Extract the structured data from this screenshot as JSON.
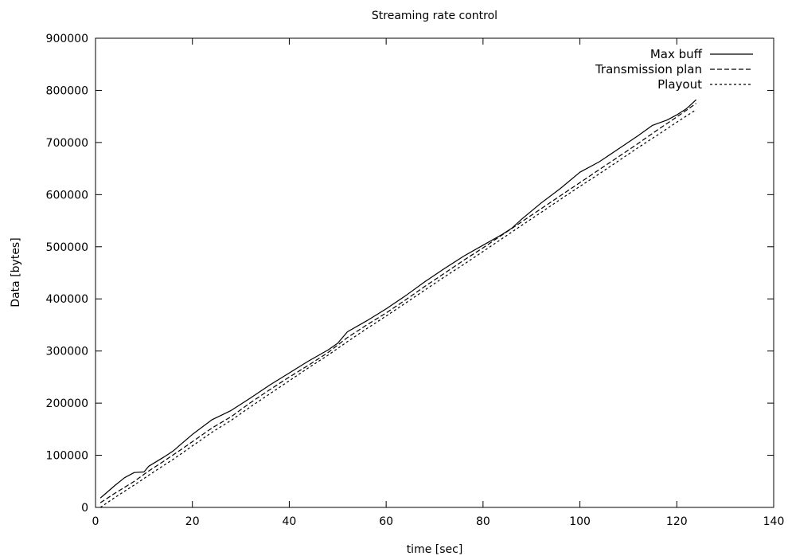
{
  "chart_data": {
    "type": "line",
    "title": "Streaming rate control",
    "xlabel": "time [sec]",
    "ylabel": "Data [bytes]",
    "xlim": [
      0,
      140
    ],
    "ylim": [
      0,
      900000
    ],
    "xticks": [
      0,
      20,
      40,
      60,
      80,
      100,
      120,
      140
    ],
    "yticks": [
      0,
      100000,
      200000,
      300000,
      400000,
      500000,
      600000,
      700000,
      800000,
      900000
    ],
    "grid": false,
    "legend_position": "top-right",
    "series": [
      {
        "name": "Max buff",
        "style": "solid",
        "x": [
          1,
          2,
          4,
          6,
          8,
          10,
          11,
          14,
          16,
          18,
          20,
          24,
          28,
          32,
          36,
          40,
          44,
          48,
          50,
          52,
          56,
          60,
          64,
          68,
          72,
          76,
          80,
          84,
          86,
          88,
          92,
          96,
          100,
          104,
          108,
          112,
          115,
          118,
          120,
          122,
          124
        ],
        "y": [
          18000,
          26000,
          42000,
          57000,
          67000,
          68000,
          79000,
          96000,
          108000,
          124000,
          140000,
          168000,
          186000,
          210000,
          235000,
          258000,
          281000,
          302000,
          315000,
          337000,
          358000,
          381000,
          406000,
          433000,
          458000,
          482000,
          503000,
          524000,
          536000,
          553000,
          584000,
          612000,
          643000,
          663000,
          688000,
          713000,
          733000,
          743000,
          753000,
          765000,
          782000
        ]
      },
      {
        "name": "Transmission plan",
        "style": "dashed",
        "x": [
          1,
          4,
          8,
          11,
          14,
          18,
          20,
          24,
          28,
          32,
          36,
          40,
          44,
          48,
          52,
          56,
          60,
          64,
          68,
          72,
          76,
          80,
          84,
          88,
          92,
          96,
          100,
          104,
          108,
          112,
          116,
          120,
          124
        ],
        "y": [
          9000,
          27000,
          50000,
          70000,
          88000,
          113000,
          126000,
          152000,
          174000,
          201000,
          226000,
          250000,
          273000,
          297000,
          326000,
          350000,
          373000,
          398000,
          424000,
          449000,
          474000,
          498000,
          523000,
          548000,
          573000,
          598000,
          623000,
          648000,
          673000,
          698000,
          724000,
          749000,
          775000
        ]
      },
      {
        "name": "Playout",
        "style": "dotted",
        "x": [
          1,
          4,
          8,
          12,
          16,
          20,
          24,
          28,
          32,
          36,
          40,
          44,
          48,
          52,
          56,
          60,
          64,
          68,
          72,
          76,
          80,
          84,
          88,
          92,
          96,
          100,
          104,
          108,
          112,
          116,
          120,
          124
        ],
        "y": [
          0,
          19000,
          43000,
          68000,
          92000,
          118000,
          144000,
          167000,
          193000,
          218000,
          243000,
          268000,
          292000,
          318000,
          343000,
          367000,
          392000,
          417000,
          442000,
          466000,
          491000,
          516000,
          541000,
          566000,
          591000,
          616000,
          640000,
          665000,
          690000,
          714000,
          739000,
          763000
        ]
      }
    ]
  }
}
